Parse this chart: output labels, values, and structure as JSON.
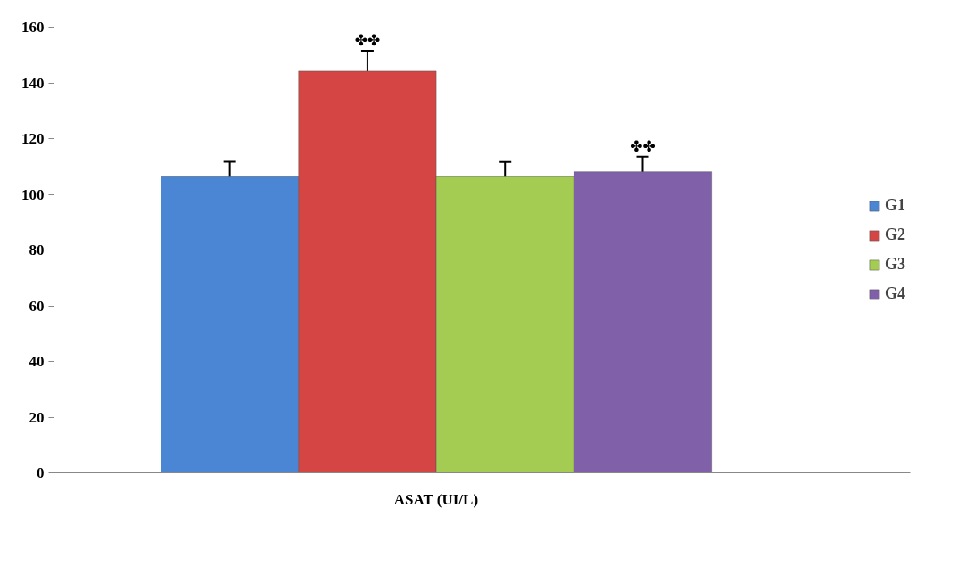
{
  "chart_data": {
    "type": "bar",
    "categories": [
      "ASAT (UI/L)"
    ],
    "series": [
      {
        "name": "G1",
        "color": "#4a86d4",
        "values": [
          106.3
        ],
        "errors": [
          5.4
        ],
        "value_labels": [
          null
        ]
      },
      {
        "name": "G2",
        "color": "#d44543",
        "values": [
          144.2
        ],
        "errors": [
          7.3
        ],
        "value_labels": [
          "✤✤"
        ]
      },
      {
        "name": "G3",
        "color": "#a4cc52",
        "values": [
          106.3
        ],
        "errors": [
          5.3
        ],
        "value_labels": [
          null
        ]
      },
      {
        "name": "G4",
        "color": "#8160aa",
        "values": [
          108.1
        ],
        "errors": [
          5.4
        ],
        "value_labels": [
          "✤✤"
        ]
      }
    ],
    "ylim": [
      0,
      160
    ],
    "yticks": [
      0,
      20,
      40,
      60,
      80,
      100,
      120,
      140,
      160
    ],
    "grid": false,
    "legend": "right"
  }
}
